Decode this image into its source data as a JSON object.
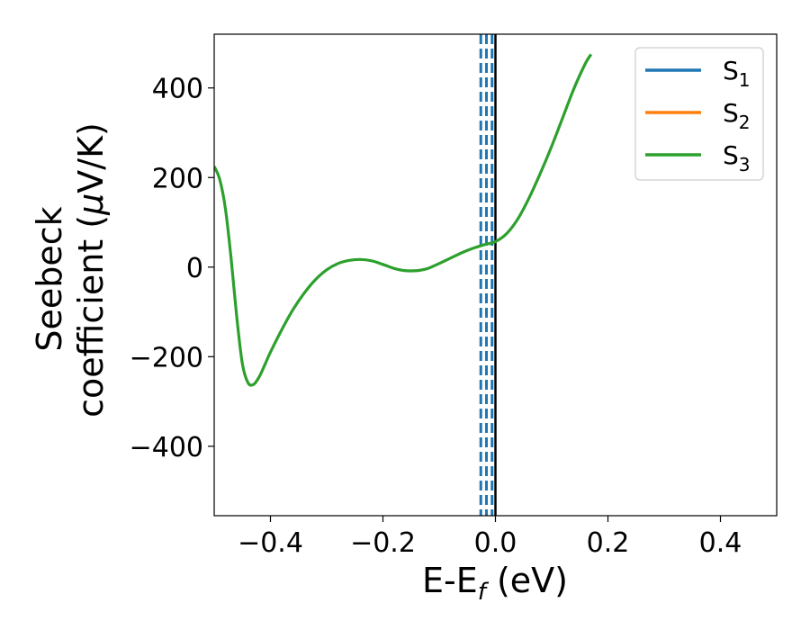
{
  "chart_data": {
    "type": "line",
    "xlabel": {
      "main": "E-E",
      "sub": "f",
      "unit": " (eV)"
    },
    "ylabel": {
      "line1": "Seebeck",
      "line2": "coefficient  (",
      "mu": "μ",
      "line2_end": "V/K)"
    },
    "xlim": [
      -0.5,
      0.5
    ],
    "ylim": [
      -555,
      520
    ],
    "xticks": [
      -0.4,
      -0.2,
      0.0,
      0.2,
      0.4
    ],
    "xtick_labels": [
      "−0.4",
      "−0.2",
      "0.0",
      "0.2",
      "0.4"
    ],
    "yticks": [
      -400,
      -200,
      0,
      200,
      400
    ],
    "ytick_labels": [
      "−400",
      "−200",
      "0",
      "200",
      "400"
    ],
    "legend": {
      "placement": "top-right",
      "entries": [
        {
          "main": "S",
          "sub": "1",
          "color": "#1f77b4"
        },
        {
          "main": "S",
          "sub": "2",
          "color": "#ff7f0e"
        },
        {
          "main": "S",
          "sub": "3",
          "color": "#2ca02c"
        }
      ]
    },
    "series": [
      {
        "name": "S3",
        "color": "#2ca02c",
        "x": [
          -0.5,
          -0.49,
          -0.48,
          -0.47,
          -0.46,
          -0.45,
          -0.44,
          -0.43,
          -0.42,
          -0.41,
          -0.4,
          -0.38,
          -0.36,
          -0.34,
          -0.32,
          -0.3,
          -0.28,
          -0.26,
          -0.24,
          -0.22,
          -0.2,
          -0.18,
          -0.16,
          -0.14,
          -0.13,
          -0.12,
          -0.1,
          -0.08,
          -0.06,
          -0.04,
          -0.02,
          0.0,
          0.02,
          0.04,
          0.06,
          0.08,
          0.1,
          0.12,
          0.14,
          0.16,
          0.17
        ],
        "y": [
          225,
          195,
          130,
          20,
          -110,
          -215,
          -258,
          -262,
          -245,
          -218,
          -190,
          -140,
          -95,
          -58,
          -28,
          -6,
          8,
          15,
          17,
          14,
          6,
          -3,
          -8,
          -8,
          -6,
          -3,
          8,
          20,
          32,
          42,
          50,
          57,
          75,
          108,
          155,
          210,
          270,
          335,
          400,
          455,
          475
        ]
      }
    ],
    "vlines": [
      {
        "x": -0.026,
        "color": "#1f77b4",
        "style": "dashed"
      },
      {
        "x": -0.016,
        "color": "#1f77b4",
        "style": "dashed"
      },
      {
        "x": -0.006,
        "color": "#1f77b4",
        "style": "dashed"
      },
      {
        "x": 0.0,
        "color": "#000000",
        "style": "solid"
      }
    ]
  }
}
